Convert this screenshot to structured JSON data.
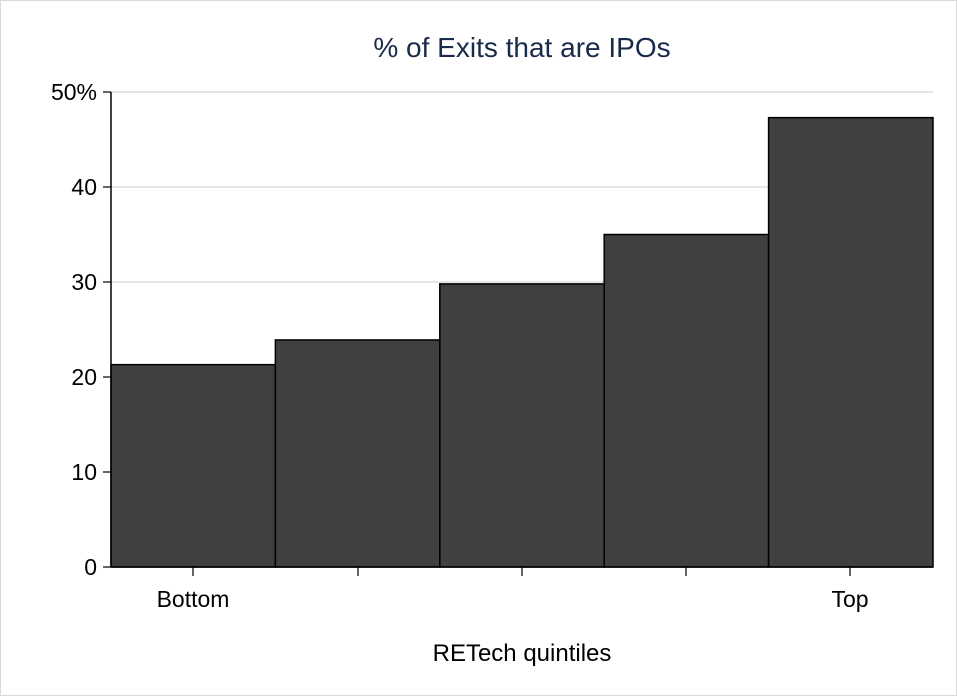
{
  "chart_data": {
    "type": "bar",
    "title": "% of Exits that are IPOs",
    "xlabel": "RETech quintiles",
    "ylabel": "",
    "categories": [
      "Bottom",
      "",
      "",
      "",
      "Top"
    ],
    "values": [
      21.3,
      23.9,
      29.8,
      35.0,
      47.3
    ],
    "ylim": [
      0,
      50
    ],
    "y_ticks": [
      "0",
      "10",
      "20",
      "30",
      "40",
      "50%"
    ],
    "grid": true,
    "colors": {
      "bar": "#404040",
      "bar_edge": "#000000",
      "grid": "#dddddd"
    }
  }
}
